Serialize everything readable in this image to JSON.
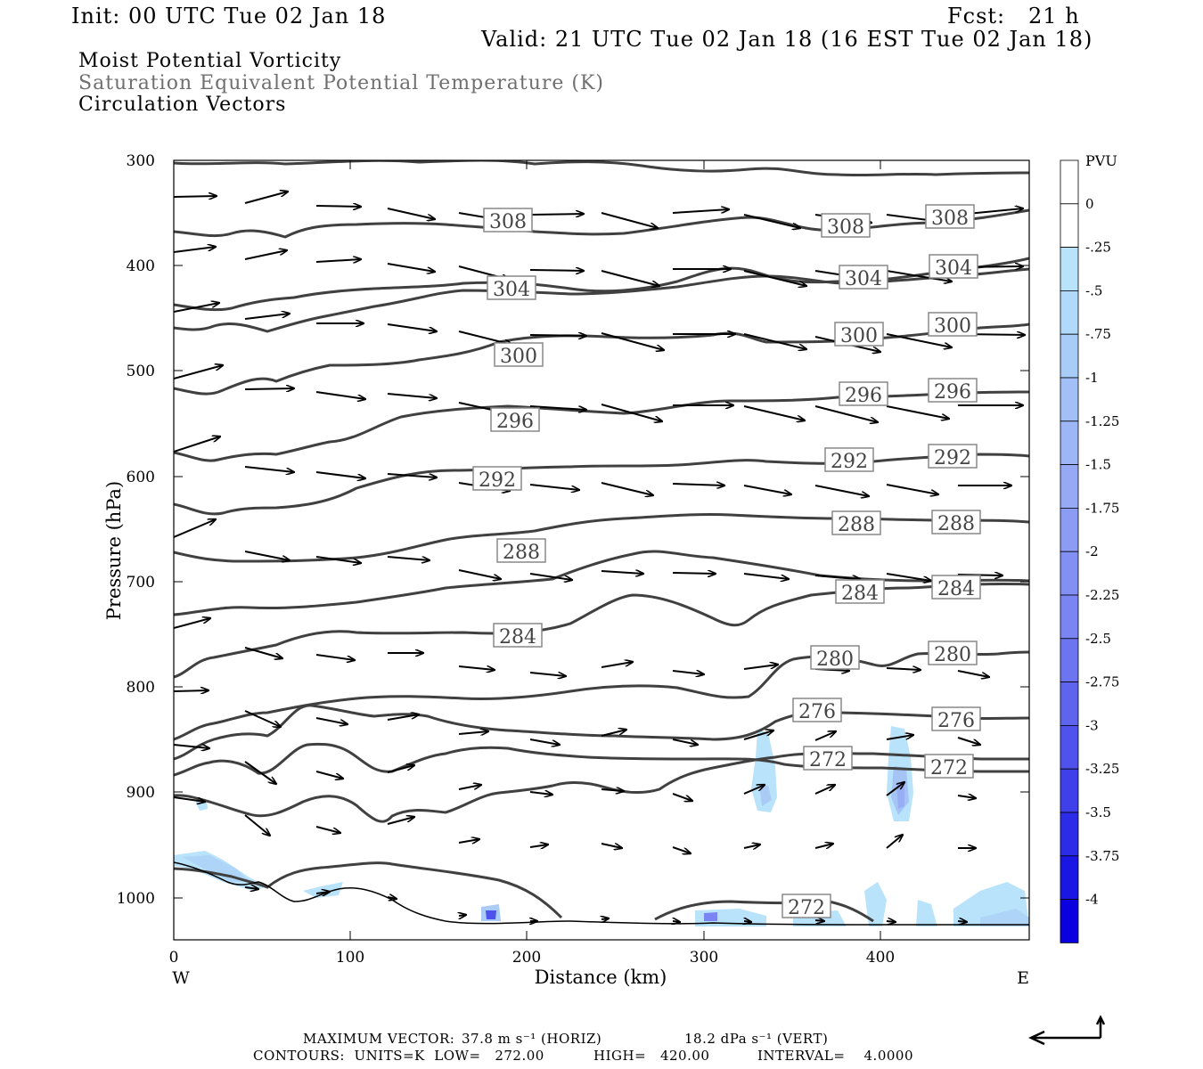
{
  "header": {
    "init": "Init: 00 UTC Tue 02 Jan 18",
    "fcst": "Fcst:   21 h",
    "valid": "Valid: 21 UTC Tue 02 Jan 18 (16 EST Tue 02 Jan 18)",
    "field1": "Moist Potential Vorticity",
    "field2": "Saturation Equivalent Potential Temperature (K)",
    "field3": "Circulation Vectors"
  },
  "axes": {
    "y_label": "Pressure (hPa)",
    "x_label": "Distance (km)",
    "y_ticks": [
      "300",
      "400",
      "500",
      "600",
      "700",
      "800",
      "900",
      "1000"
    ],
    "x_ticks": [
      "0",
      "100",
      "200",
      "300",
      "400"
    ],
    "west": "W",
    "east": "E"
  },
  "colorbar": {
    "title": "PVU",
    "labels": [
      "0",
      "-.25",
      "-.5",
      "-.75",
      "-1",
      "-1.25",
      "-1.5",
      "-1.75",
      "-2",
      "-2.25",
      "-2.5",
      "-2.75",
      "-3",
      "-3.25",
      "-3.5",
      "-3.75",
      "-4"
    ],
    "colors": [
      "#ffffff",
      "#ffffff",
      "#b9e3fb",
      "#b0d9fb",
      "#a8ccf8",
      "#a2c0f7",
      "#9db6f6",
      "#95a9f5",
      "#8c9cf4",
      "#8290f3",
      "#7a84f2",
      "#6c74f0",
      "#5e64ee",
      "#4f52ec",
      "#3f40ea",
      "#2c2be8",
      "#1a16e4",
      "#0b00e0"
    ]
  },
  "contours": {
    "labels": [
      "308",
      "308",
      "308",
      "304",
      "304",
      "304",
      "300",
      "300",
      "300",
      "296",
      "296",
      "296",
      "292",
      "292",
      "292",
      "288",
      "288",
      "288",
      "284",
      "284",
      "284",
      "280",
      "280",
      "276",
      "276",
      "272",
      "272",
      "272"
    ]
  },
  "footer": {
    "max_vector_label": "MAXIMUM VECTOR:",
    "max_vector_horiz": "37.8 m s⁻¹ (HORIZ)",
    "max_vector_vert": "18.2 dPa s⁻¹ (VERT)",
    "contours_line": "CONTOURS:  UNITS=K  LOW=   272.00",
    "high": "HIGH=   420.00",
    "interval": "INTERVAL=    4.0000"
  }
}
